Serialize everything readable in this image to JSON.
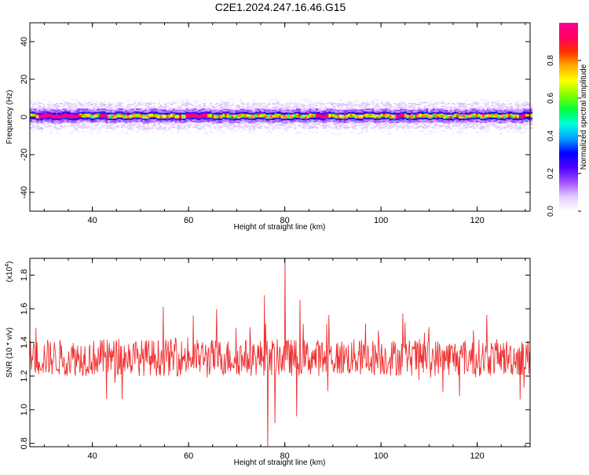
{
  "title": "C2E1.2024.247.16.46.G15",
  "colors": {
    "snr_line": "#f03232",
    "axes": "#000000",
    "background": "#ffffff"
  },
  "chart_data": [
    {
      "type": "heatmap",
      "xlabel": "Height of straight line (km)",
      "ylabel": "Frequency (Hz)",
      "xlim": [
        27,
        131
      ],
      "ylim": [
        -50,
        50
      ],
      "xticks": [
        40,
        60,
        80,
        100,
        120
      ],
      "yticks": [
        -40,
        -20,
        0,
        20,
        40
      ],
      "colorbar": {
        "label": "Normalized spectral amplitude",
        "range": [
          0,
          1
        ],
        "ticks": [
          "0.0",
          "0.2",
          "0.4",
          "0.6",
          "0.8"
        ],
        "colormap": [
          "#ffffff",
          "#e4ccff",
          "#a050ff",
          "#5000ff",
          "#0000ff",
          "#00a0ff",
          "#00ffe0",
          "#00ff40",
          "#80ff00",
          "#ffff00",
          "#ffb000",
          "#ff3000",
          "#ff0060",
          "#ff0090"
        ]
      },
      "band_center_hz": 0.5,
      "band_halfwidth_hz": 6,
      "peak_segments_km": [
        [
          28.5,
          37
        ],
        [
          41,
          43
        ],
        [
          59,
          63.5
        ],
        [
          86,
          89
        ],
        [
          103,
          104.5
        ],
        [
          128.5,
          130
        ]
      ]
    },
    {
      "type": "line",
      "xlabel": "Height of straight line (km)",
      "ylabel": "SNR (10 * v/v)",
      "yscale_note": "(x10",
      "yscale_exp": "4",
      "xlim": [
        27,
        131
      ],
      "ylim": [
        0.78,
        1.9
      ],
      "xticks": [
        40,
        60,
        80,
        100,
        120
      ],
      "yticks": [
        "0.8",
        "1.0",
        "1.2",
        "1.4",
        "1.6",
        "1.8"
      ],
      "series": [
        {
          "baseline": 1.31,
          "noise_range": [
            1.05,
            1.74
          ],
          "features": [
            {
              "x": 76.5,
              "y": 0.78
            },
            {
              "x": 80.0,
              "y": 1.9
            },
            {
              "x": 78.0,
              "y": 0.92
            },
            {
              "x": 82.5,
              "y": 0.96
            },
            {
              "x": 75.8,
              "y": 1.68
            }
          ]
        }
      ]
    }
  ]
}
